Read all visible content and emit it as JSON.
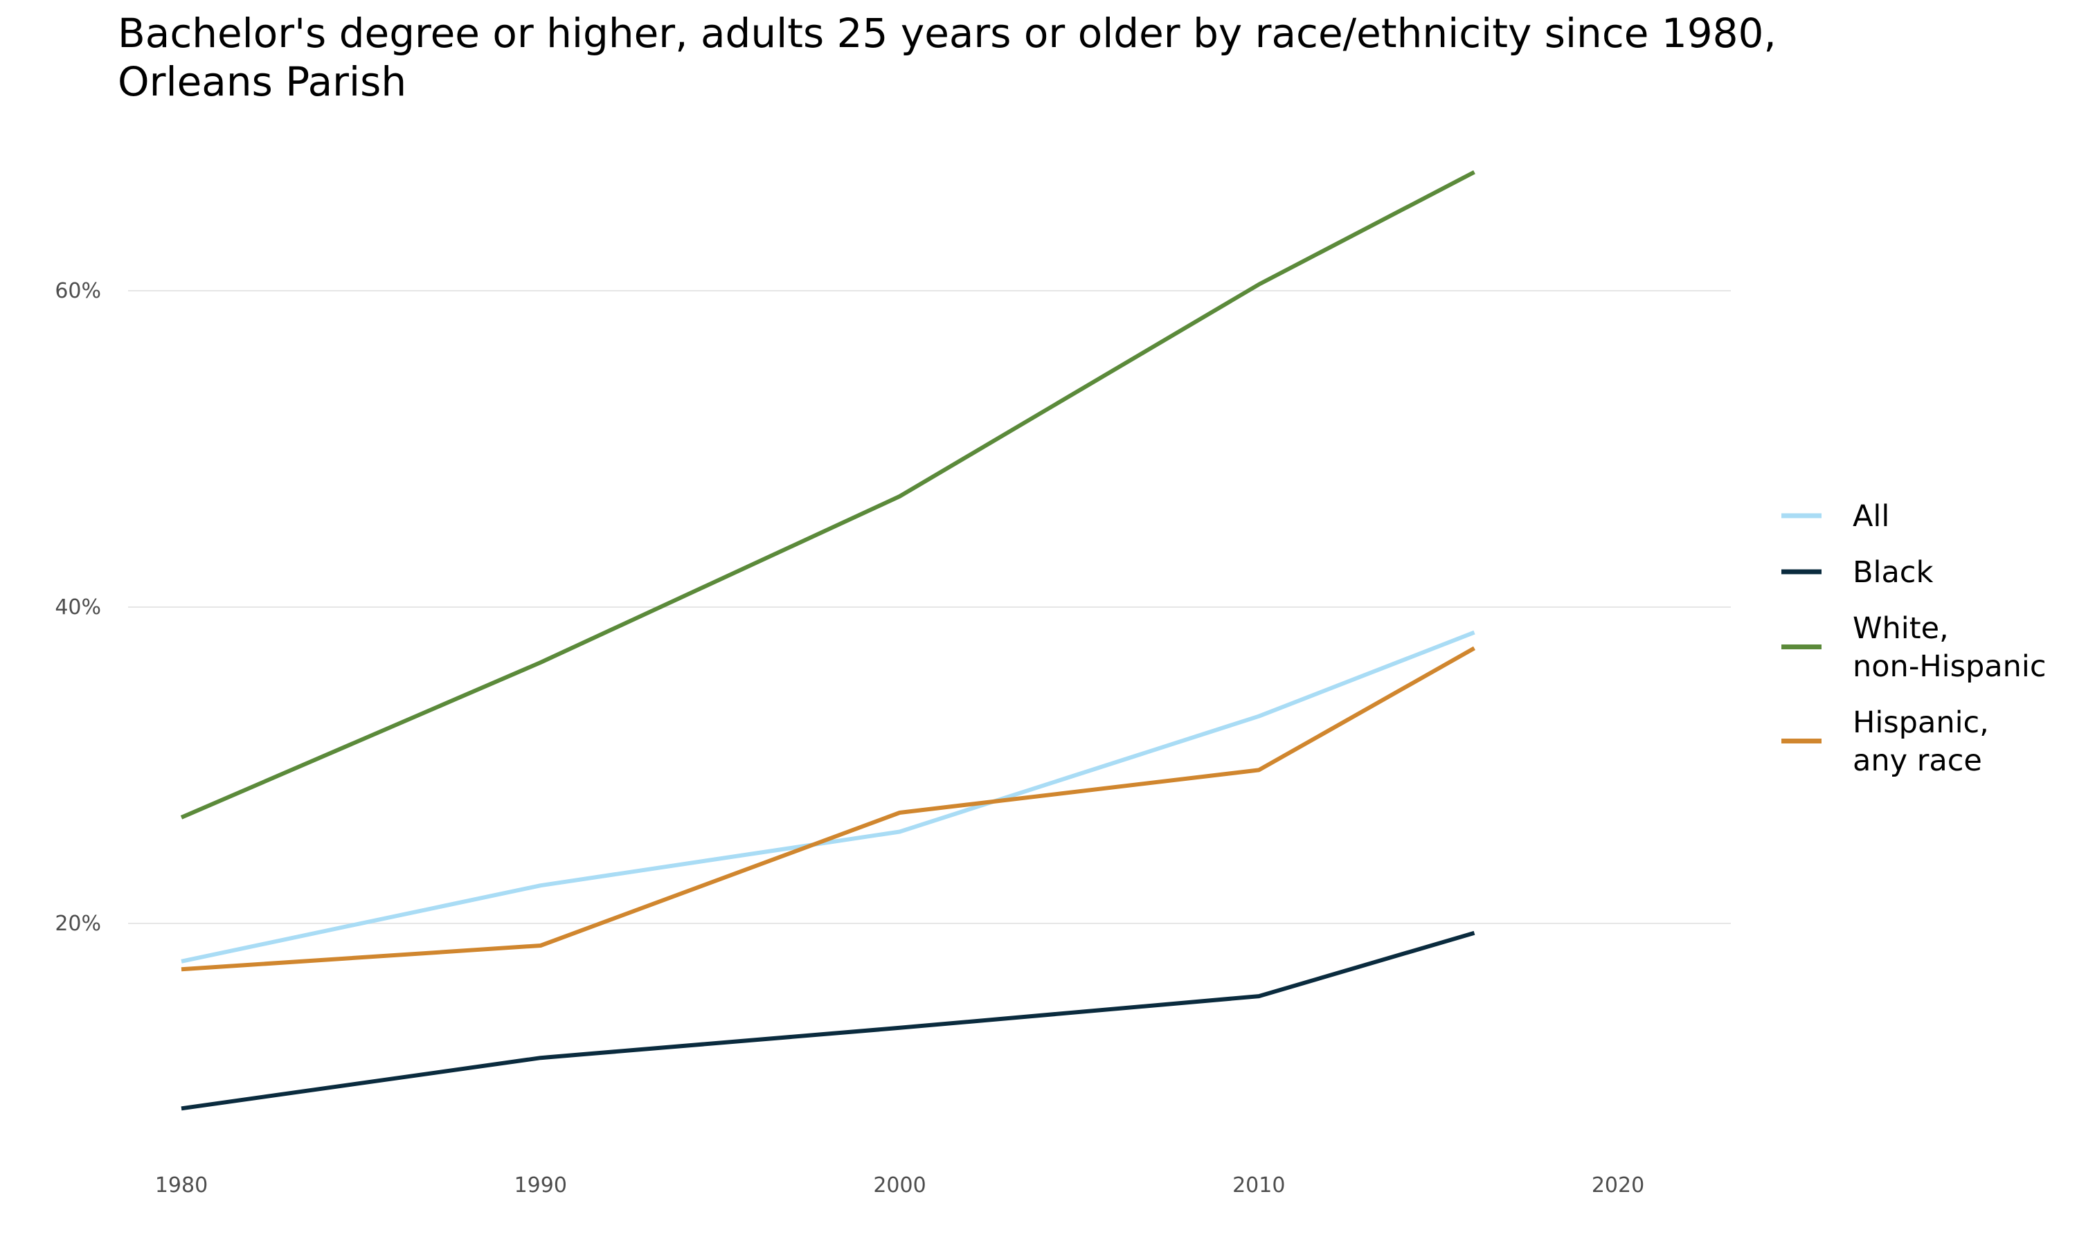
{
  "chart_data": {
    "type": "line",
    "title": "Bachelor's degree or higher, adults 25 years or older by race/ethnicity since 1980,",
    "title_line2": "Orleans Parish",
    "xlabel": "",
    "ylabel": "",
    "x": [
      1980,
      1990,
      2000,
      2010,
      2016
    ],
    "xlim": [
      1980,
      2020
    ],
    "ylim": [
      0,
      70
    ],
    "x_ticks": [
      {
        "value": 1980,
        "label": "1980"
      },
      {
        "value": 1990,
        "label": "1990"
      },
      {
        "value": 2000,
        "label": "2000"
      },
      {
        "value": 2010,
        "label": "2010"
      },
      {
        "value": 2020,
        "label": "2020"
      }
    ],
    "y_ticks": [
      {
        "value": 20,
        "label": "20%"
      },
      {
        "value": 40,
        "label": "40%"
      },
      {
        "value": 60,
        "label": "60%"
      }
    ],
    "grid": "horizontal",
    "legend_position": "right",
    "series": [
      {
        "name": "All",
        "legend_lines": [
          "All"
        ],
        "color": "#a9dcf5",
        "values": [
          17.6,
          22.4,
          25.8,
          33.1,
          38.4
        ]
      },
      {
        "name": "Black",
        "legend_lines": [
          "Black"
        ],
        "color": "#0a2b3e",
        "values": [
          8.3,
          11.5,
          13.4,
          15.4,
          19.4
        ]
      },
      {
        "name": "White, non-Hispanic",
        "legend_lines": [
          "White,",
          "non-Hispanic"
        ],
        "color": "#5b8a3a",
        "values": [
          26.7,
          36.5,
          47.0,
          60.4,
          67.5
        ]
      },
      {
        "name": "Hispanic, any race",
        "legend_lines": [
          "Hispanic,",
          "any race"
        ],
        "color": "#d0862e",
        "values": [
          17.1,
          18.6,
          27.0,
          29.7,
          37.4
        ]
      }
    ]
  }
}
